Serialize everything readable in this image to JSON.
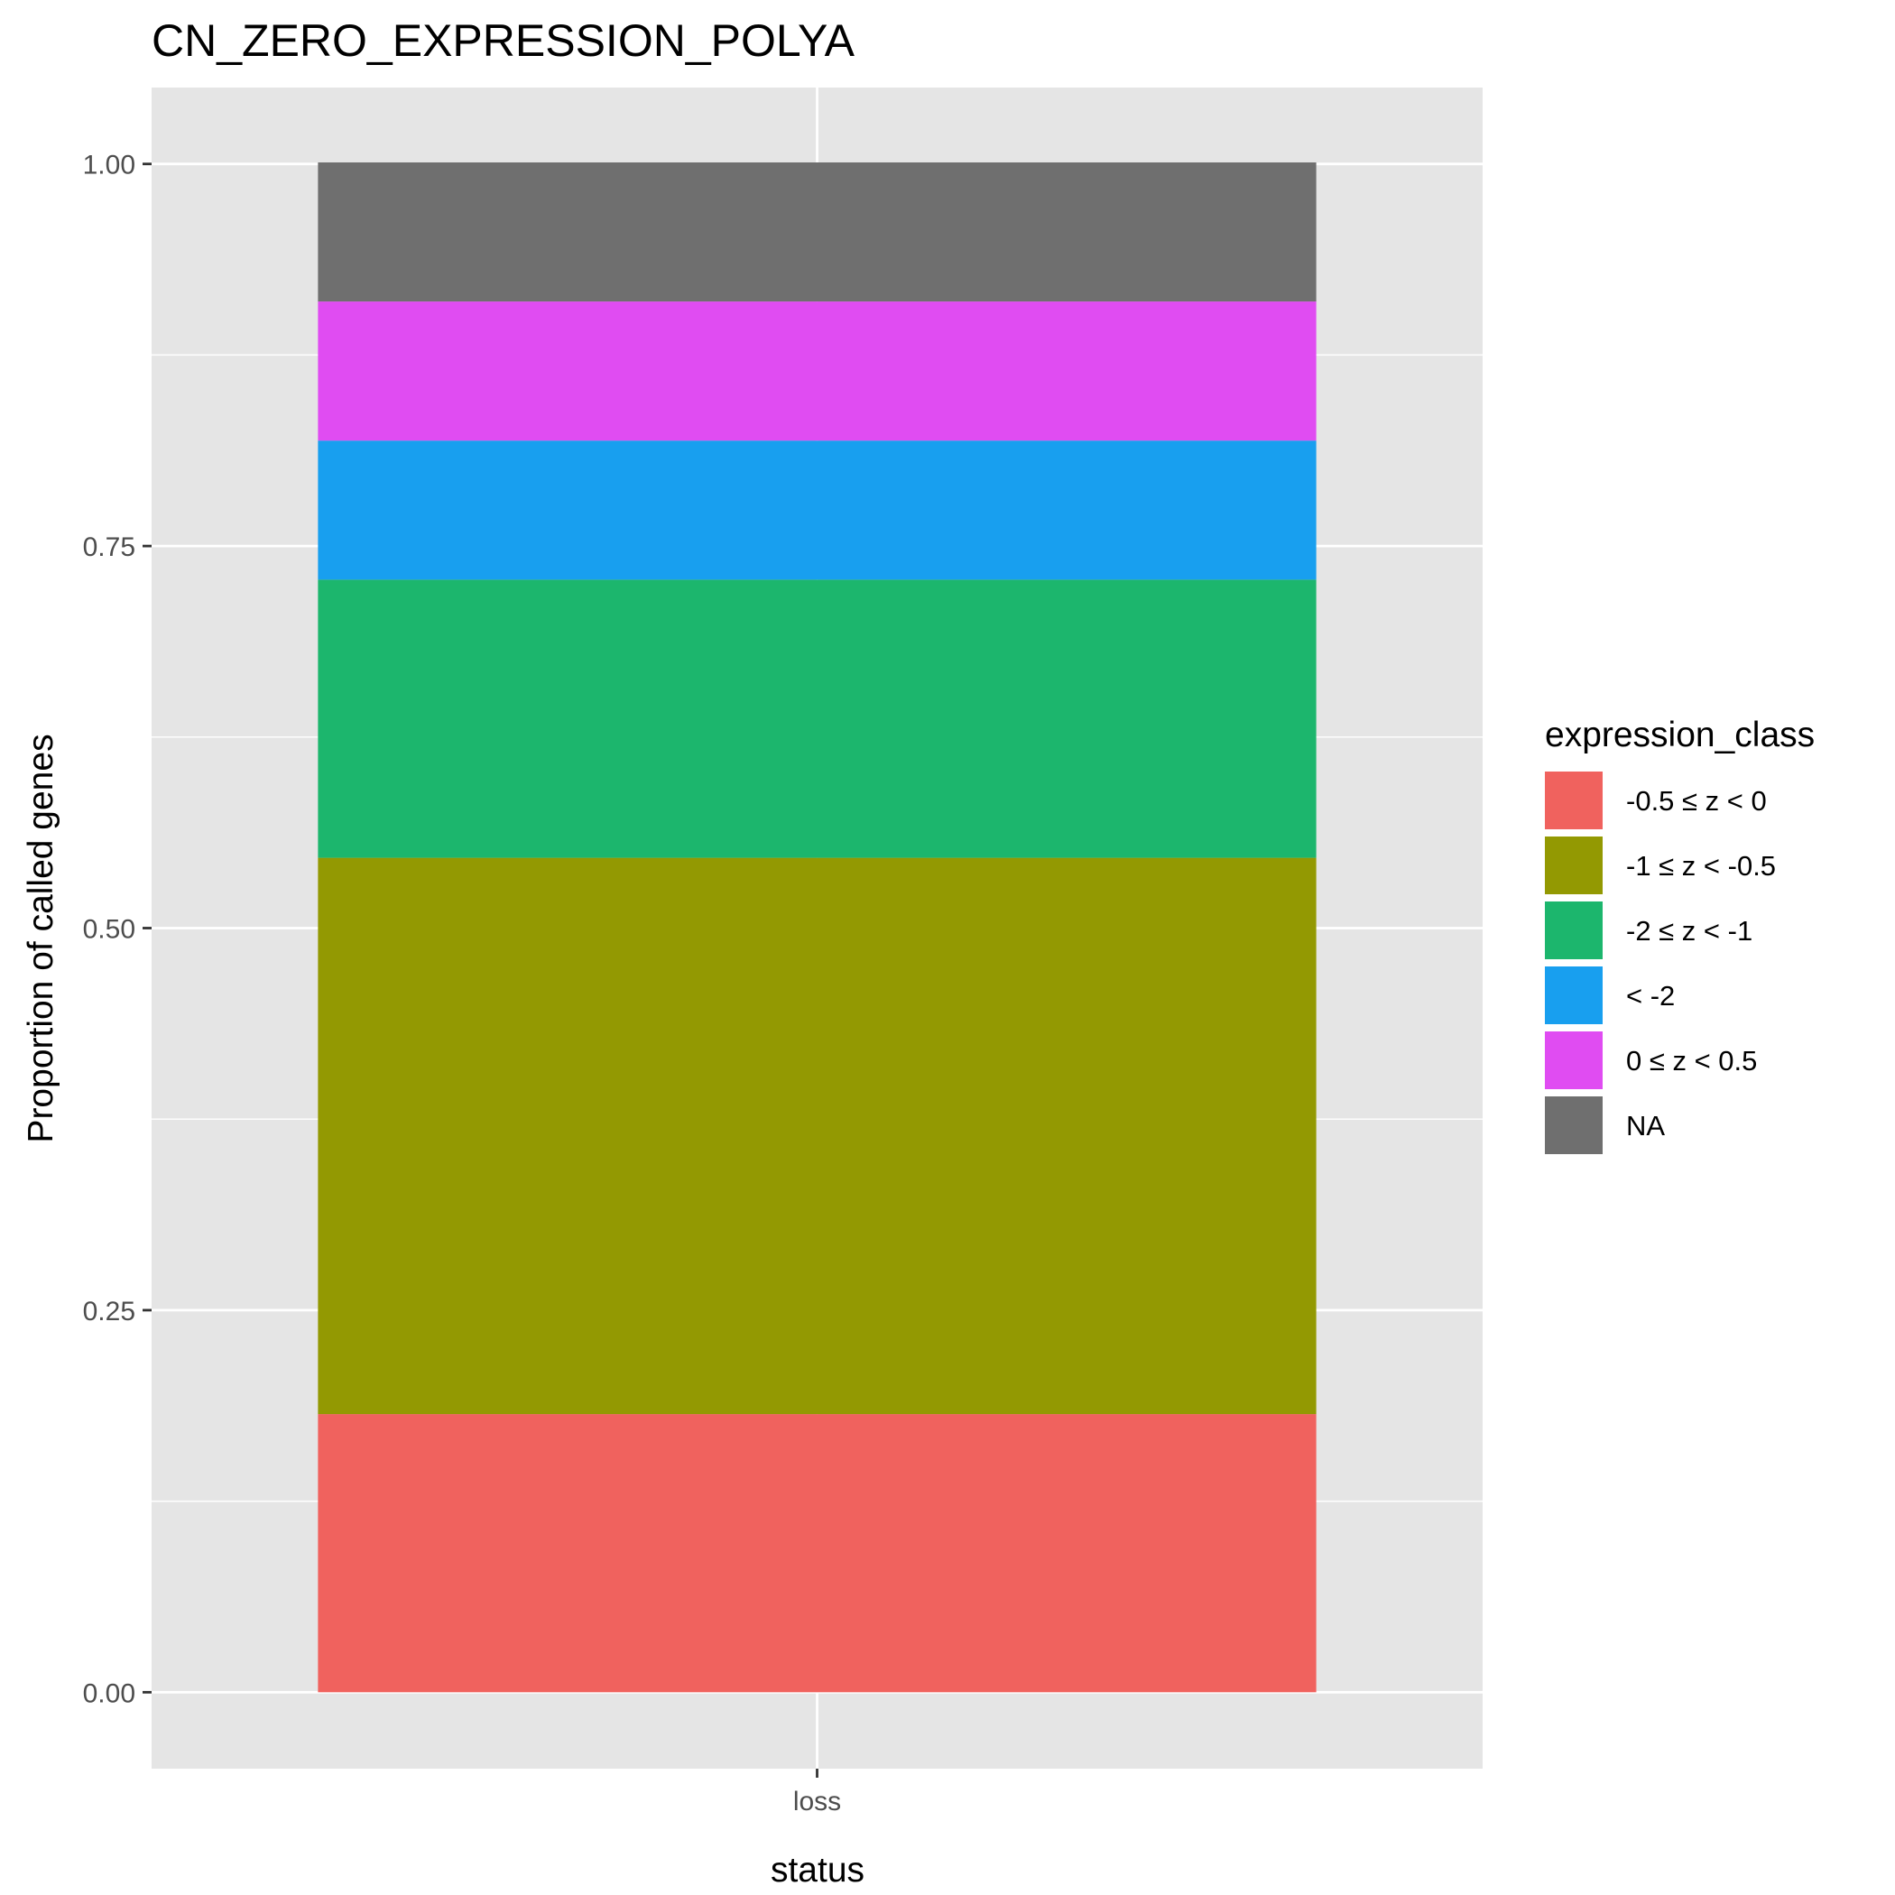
{
  "chart_data": {
    "type": "bar",
    "stacked": true,
    "title": "CN_ZERO_EXPRESSION_POLYA",
    "xlabel": "status",
    "ylabel": "Proportion of called genes",
    "categories": [
      "loss"
    ],
    "ylim": [
      -0.05,
      1.05
    ],
    "yticks": [
      0.0,
      0.25,
      0.5,
      0.75,
      1.0
    ],
    "ytick_labels": [
      "0.00",
      "0.25",
      "0.50",
      "0.75",
      "1.00"
    ],
    "grid": true,
    "legend": {
      "title": "expression_class",
      "position": "right"
    },
    "series": [
      {
        "name": "-0.5 ≤ z < 0",
        "values": [
          0.182
        ],
        "color": "#F0625E"
      },
      {
        "name": "-1 ≤ z < -0.5",
        "values": [
          0.364
        ],
        "color": "#939902"
      },
      {
        "name": "-2 ≤ z < -1",
        "values": [
          0.182
        ],
        "color": "#1CB66D"
      },
      {
        "name": "< -2",
        "values": [
          0.091
        ],
        "color": "#189FEF"
      },
      {
        "name": "0 ≤ z < 0.5",
        "values": [
          0.091
        ],
        "color": "#E04CF2"
      },
      {
        "name": "NA",
        "values": [
          0.091
        ],
        "color": "#6F6F6F"
      }
    ],
    "stack_order_bottom_to_top": [
      "-0.5 ≤ z < 0",
      "-1 ≤ z < -0.5",
      "-2 ≤ z < -1",
      "< -2",
      "0 ≤ z < 0.5",
      "NA"
    ],
    "panel_background": "#E5E5E5",
    "gridline_color": "#FFFFFF"
  }
}
